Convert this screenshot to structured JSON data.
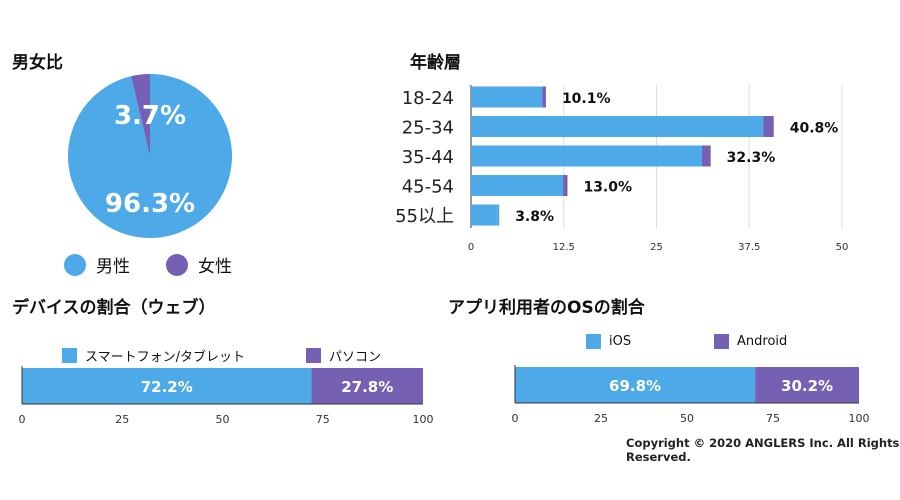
{
  "colors": {
    "blue": "#4DA9E8",
    "purple": "#7560B4",
    "axis": "#333333",
    "grid": "#dddddd"
  },
  "gender": {
    "title": "男女比",
    "legend": [
      "男性",
      "女性"
    ]
  },
  "age": {
    "title": "年齢層"
  },
  "device": {
    "title": "デバイスの割合（ウェブ）",
    "legend": [
      "スマートフォン/タブレット",
      "パソコン"
    ]
  },
  "os": {
    "title": "アプリ利用者のOSの割合",
    "legend": [
      "iOS",
      "Android"
    ]
  },
  "copyright": "Copyright © 2020 ANGLERS Inc. All Rights Reserved.",
  "chart_data": [
    {
      "type": "pie",
      "title": "男女比",
      "labels": [
        "男性",
        "女性"
      ],
      "values": [
        96.3,
        3.7
      ],
      "value_labels": [
        "96.3%",
        "3.7%"
      ]
    },
    {
      "type": "bar",
      "orientation": "horizontal",
      "stacked": true,
      "title": "年齢層",
      "categories": [
        "18-24",
        "25-34",
        "35-44",
        "45-54",
        "55以上"
      ],
      "series": [
        {
          "values": [
            10.1,
            40.8,
            32.3,
            13.0,
            3.8
          ]
        }
      ],
      "value_labels": [
        "10.1%",
        "40.8%",
        "32.3%",
        "13.0%",
        "3.8%"
      ],
      "xticks": [
        "0",
        "12.5",
        "25",
        "37.5",
        "50"
      ],
      "xlim": [
        0,
        50
      ],
      "grid": true
    },
    {
      "type": "bar",
      "orientation": "horizontal",
      "stacked": true,
      "title": "デバイスの割合（ウェブ）",
      "categories": [
        ""
      ],
      "series": [
        {
          "name": "スマートフォン/タブレット",
          "values": [
            72.2
          ]
        },
        {
          "name": "パソコン",
          "values": [
            27.8
          ]
        }
      ],
      "value_labels": [
        "72.2%",
        "27.8%"
      ],
      "xticks": [
        "0",
        "25",
        "50",
        "75",
        "100"
      ],
      "xlim": [
        0,
        100
      ],
      "legend": "top"
    },
    {
      "type": "bar",
      "orientation": "horizontal",
      "stacked": true,
      "title": "アプリ利用者のOSの割合",
      "categories": [
        ""
      ],
      "series": [
        {
          "name": "iOS",
          "values": [
            69.8
          ]
        },
        {
          "name": "Android",
          "values": [
            30.2
          ]
        }
      ],
      "value_labels": [
        "69.8%",
        "30.2%"
      ],
      "xticks": [
        "0",
        "25",
        "50",
        "75",
        "100"
      ],
      "xlim": [
        0,
        100
      ],
      "legend": "top"
    }
  ]
}
